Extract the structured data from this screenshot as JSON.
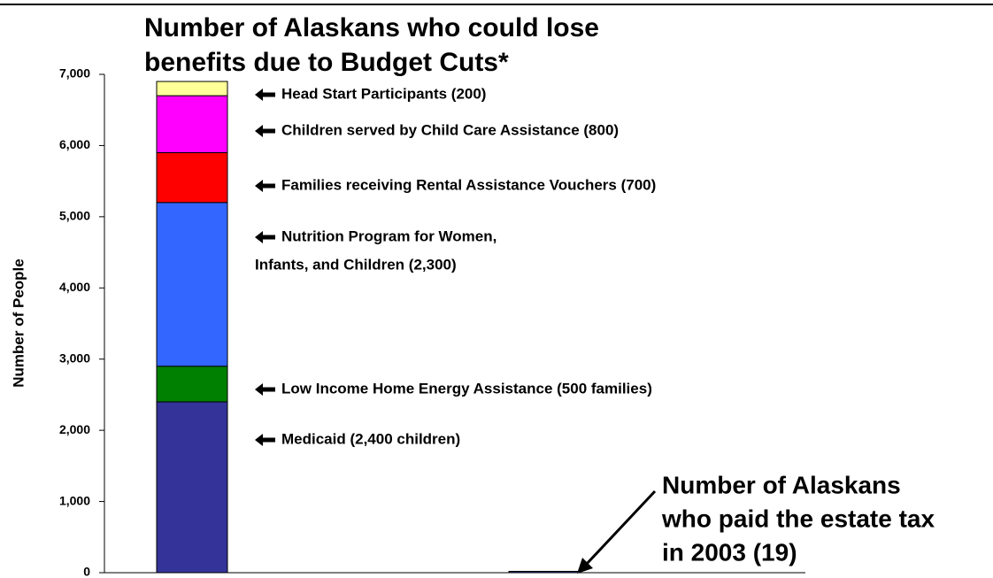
{
  "chart_data": {
    "type": "bar",
    "stacked": true,
    "title_lines": [
      "Number of Alaskans who could lose",
      "benefits due to Budget Cuts*"
    ],
    "y_label": "Number of People",
    "categories": [
      null,
      null
    ],
    "ylim": [
      0,
      7000
    ],
    "yticks": [
      0,
      {
        "value": 1000,
        "label": "1,000"
      },
      {
        "value": 2000,
        "label": "2,000"
      },
      {
        "value": 3000,
        "label": "3,000"
      },
      {
        "value": 4000,
        "label": "4,000"
      },
      {
        "value": 5000,
        "label": "5,000"
      },
      {
        "value": 6000,
        "label": "6,000"
      },
      {
        "value": 7000,
        "label": "7,000"
      }
    ],
    "series": [
      {
        "label_lines": [
          "Medicaid (2,400 children)"
        ],
        "color": "#333399",
        "values": [
          2400,
          null
        ]
      },
      {
        "label_lines": [
          "Low Income Home Energy Assistance (500 families)"
        ],
        "color": "#008000",
        "values": [
          500,
          null
        ]
      },
      {
        "label_lines": [
          "Nutrition Program for Women,",
          "Infants, and Children (2,300)"
        ],
        "color": "#3366ff",
        "values": [
          2300,
          null
        ]
      },
      {
        "label_lines": [
          "Families receiving Rental Assistance Vouchers (700)"
        ],
        "color": "#ff0000",
        "values": [
          700,
          null
        ]
      },
      {
        "label_lines": [
          "Children served by Child Care Assistance (800)"
        ],
        "color": "#ff00ff",
        "values": [
          800,
          null
        ]
      },
      {
        "label_lines": [
          "Head Start Participants (200)"
        ],
        "color": "#ffff99",
        "values": [
          200,
          null
        ]
      },
      {
        "label_lines": [
          "Number of Alaskans",
          "who paid the estate tax",
          "in 2003 (19)"
        ],
        "color": "#333399",
        "values": [
          null,
          19
        ]
      }
    ]
  }
}
